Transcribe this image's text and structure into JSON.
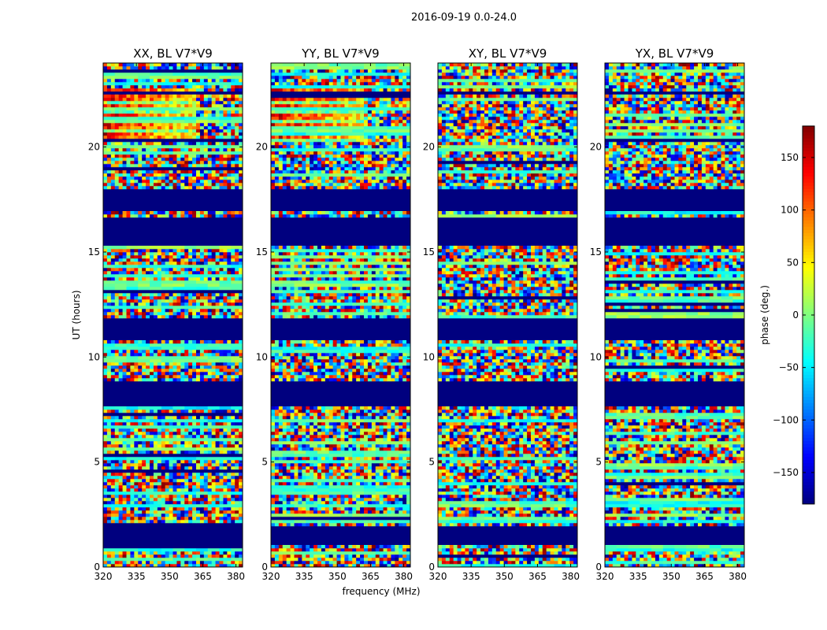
{
  "chart_data": {
    "type": "heatmap",
    "title": "2016-09-19 0.0-24.0",
    "xlabel": "frequency (MHz)",
    "ylabel": "UT (hours)",
    "xlim": [
      320,
      383
    ],
    "ylim": [
      0,
      24
    ],
    "x_ticks": [
      "320",
      "335",
      "350",
      "365",
      "380"
    ],
    "y_ticks": [
      "0",
      "5",
      "10",
      "15",
      "20"
    ],
    "panels": [
      {
        "title": "XX, BL V7*V9"
      },
      {
        "title": "YY, BL V7*V9"
      },
      {
        "title": "XY, BL V7*V9"
      },
      {
        "title": "YX, BL V7*V9"
      }
    ],
    "colorbar": {
      "label": "phase (deg.)",
      "range": [
        -180,
        180
      ],
      "ticks": [
        "150",
        "100",
        "50",
        "0",
        "−50",
        "−100",
        "−150"
      ],
      "tick_values": [
        150,
        100,
        50,
        0,
        -50,
        -100,
        -150
      ],
      "colormap": "jet"
    },
    "flagged_ut_hours": [
      [
        1.1,
        2.0
      ],
      [
        7.6,
        8.9
      ],
      [
        10.8,
        11.9
      ],
      [
        15.3,
        16.6
      ],
      [
        17.0,
        18.0
      ],
      [
        22.5,
        22.6
      ]
    ],
    "grid": false
  }
}
